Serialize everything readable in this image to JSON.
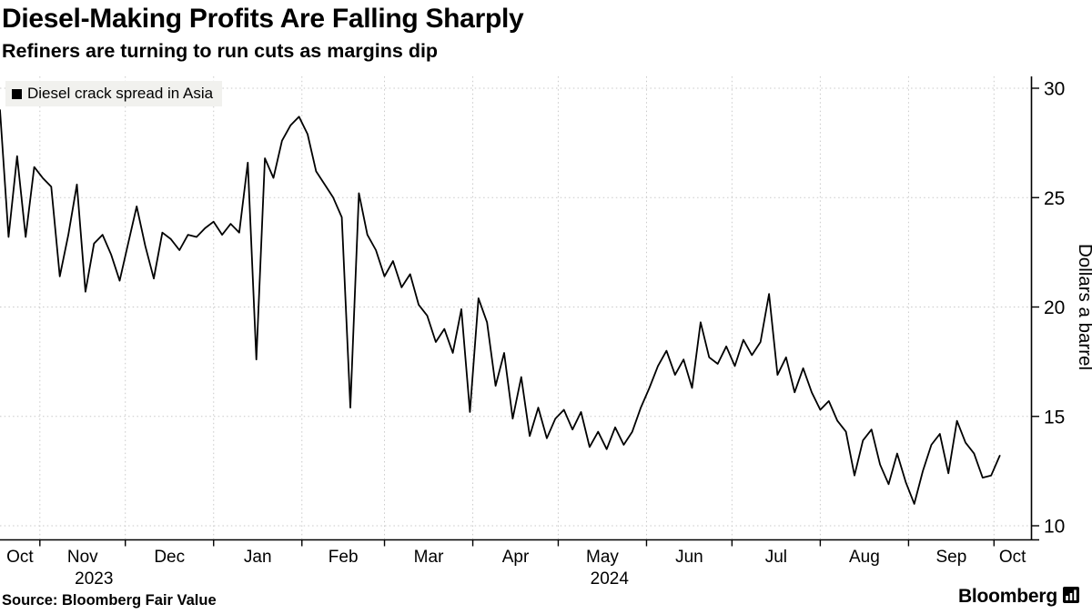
{
  "header": {
    "title": "Diesel-Making Profits Are Falling Sharply",
    "subtitle": "Refiners are turning to run cuts as margins dip"
  },
  "legend": {
    "label": "Diesel crack spread in Asia",
    "marker_color": "#000000"
  },
  "footer": {
    "source": "Source: Bloomberg Fair Value",
    "brand": "Bloomberg"
  },
  "chart_data": {
    "type": "line",
    "title": "Diesel-Making Profits Are Falling Sharply",
    "subtitle": "Refiners are turning to run cuts as margins dip",
    "ylabel": "Dollars a barrel",
    "y_ticks": [
      10,
      15,
      20,
      25,
      30
    ],
    "ylim": [
      10,
      30
    ],
    "grid": {
      "show": true,
      "style": "dotted",
      "color": "#c9c9c9"
    },
    "legend_position": "top-left",
    "series": [
      {
        "name": "Diesel crack spread in Asia",
        "color": "#000000",
        "unit": "dollars per barrel",
        "start_date": "2023-10-18",
        "interval_days": 3,
        "values": [
          29.0,
          23.2,
          26.9,
          23.2,
          26.4,
          25.9,
          25.5,
          21.4,
          23.3,
          25.6,
          20.7,
          22.9,
          23.3,
          22.4,
          21.2,
          22.9,
          24.6,
          22.8,
          21.3,
          23.4,
          23.1,
          22.6,
          23.3,
          23.2,
          23.6,
          23.9,
          23.3,
          23.8,
          23.4,
          26.6,
          17.6,
          26.8,
          25.9,
          27.6,
          28.3,
          28.7,
          27.9,
          26.2,
          25.6,
          25.0,
          24.1,
          15.4,
          25.2,
          23.3,
          22.6,
          21.4,
          22.1,
          20.9,
          21.5,
          20.1,
          19.6,
          18.4,
          19.0,
          17.9,
          19.9,
          15.2,
          20.4,
          19.3,
          16.4,
          17.9,
          14.9,
          16.8,
          14.1,
          15.4,
          14.0,
          14.9,
          15.3,
          14.4,
          15.2,
          13.6,
          14.3,
          13.5,
          14.5,
          13.7,
          14.3,
          15.4,
          16.3,
          17.3,
          18.0,
          16.9,
          17.6,
          16.3,
          19.3,
          17.7,
          17.4,
          18.2,
          17.3,
          18.5,
          17.8,
          18.4,
          20.6,
          16.9,
          17.7,
          16.1,
          17.2,
          16.1,
          15.3,
          15.7,
          14.8,
          14.3,
          12.3,
          13.9,
          14.4,
          12.8,
          11.9,
          13.3,
          12.0,
          11.0,
          12.5,
          13.7,
          14.2,
          12.4,
          14.8,
          13.8,
          13.3,
          12.2,
          12.3,
          13.2
        ]
      }
    ],
    "x_axis": {
      "domain_days": [
        0,
        362
      ],
      "month_boundaries_day": [
        14,
        44,
        75,
        106,
        135,
        166,
        196,
        227,
        257,
        288,
        319,
        349
      ],
      "month_labels": [
        {
          "label": "Oct",
          "day": 7
        },
        {
          "label": "Nov",
          "day": 29
        },
        {
          "label": "Dec",
          "day": 59.5
        },
        {
          "label": "Jan",
          "day": 90.5
        },
        {
          "label": "Feb",
          "day": 120.5
        },
        {
          "label": "Mar",
          "day": 150.5
        },
        {
          "label": "Apr",
          "day": 181
        },
        {
          "label": "May",
          "day": 211.5
        },
        {
          "label": "Jun",
          "day": 242
        },
        {
          "label": "Jul",
          "day": 272.5
        },
        {
          "label": "Aug",
          "day": 303.5
        },
        {
          "label": "Sep",
          "day": 334
        },
        {
          "label": "Oct",
          "day": 355.5
        }
      ],
      "year_labels": [
        {
          "label": "2023",
          "day": 33
        },
        {
          "label": "2024",
          "day": 214
        }
      ]
    }
  }
}
